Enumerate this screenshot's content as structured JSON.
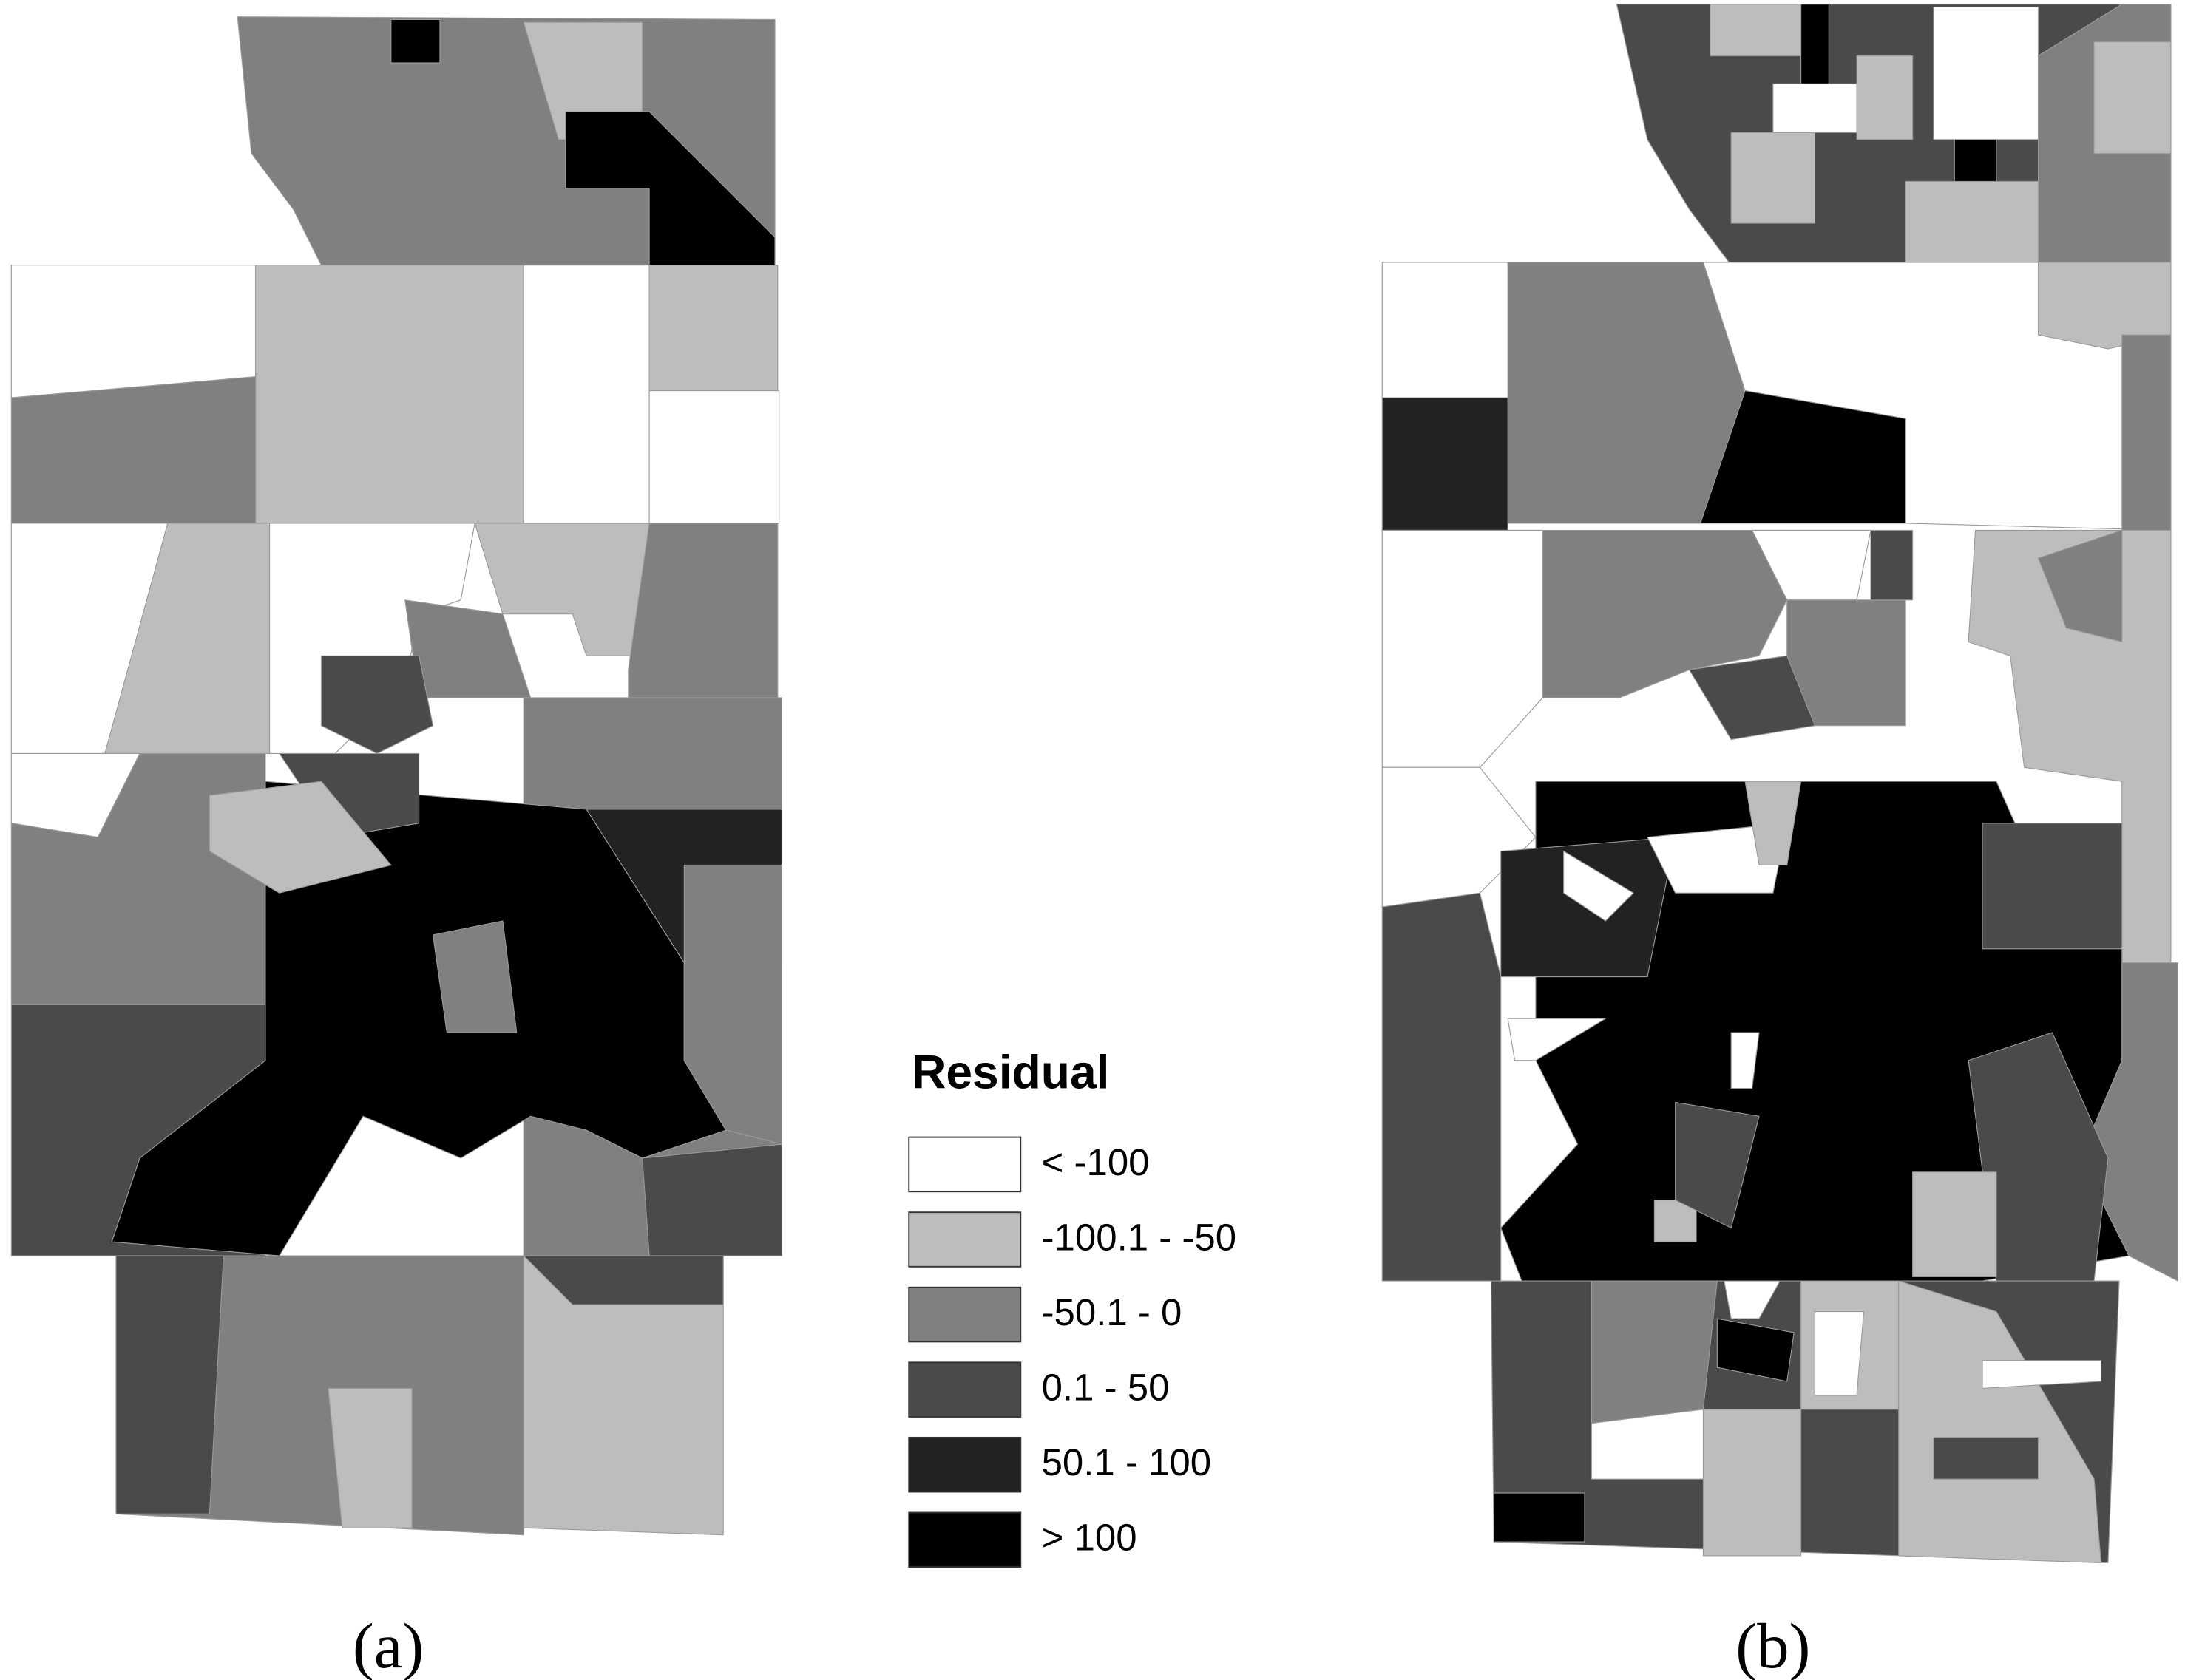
{
  "legend": {
    "title": "Residual",
    "items": [
      {
        "label": "< -100",
        "color": "#ffffff"
      },
      {
        "label": "-100.1 - -50",
        "color": "#bdbdbd"
      },
      {
        "label": "-50.1 - 0",
        "color": "#808080"
      },
      {
        "label": "0.1 - 50",
        "color": "#4a4a4a"
      },
      {
        "label": "50.1 - 100",
        "color": "#222222"
      },
      {
        "label": "> 100",
        "color": "#000000"
      }
    ]
  },
  "panels": [
    {
      "label": "(a)"
    },
    {
      "label": "(b)"
    }
  ]
}
